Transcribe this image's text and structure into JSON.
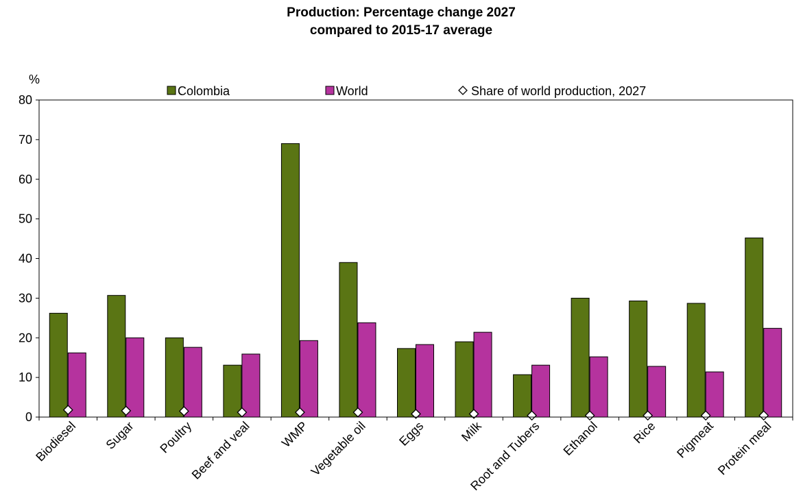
{
  "chart_data": {
    "type": "bar",
    "title_line1": "Production: Percentage change 2027",
    "title_line2": "compared to 2015-17 average",
    "ylabel": "%",
    "ylim": [
      0,
      80
    ],
    "yticks": [
      0,
      10,
      20,
      30,
      40,
      50,
      60,
      70,
      80
    ],
    "legend_placement": "top",
    "categories": [
      "Biodiesel",
      "Sugar",
      "Poultry",
      "Beef and veal",
      "WMP",
      "Vegetable oil",
      "Eggs",
      "Milk",
      "Root and Tubers",
      "Ethanol",
      "Rice",
      "Pigmeat",
      "Protein meal"
    ],
    "series": [
      {
        "name": "Colombia",
        "color": "#5a7514",
        "values": [
          26.2,
          30.7,
          20.0,
          13.1,
          69.0,
          39.0,
          17.3,
          19.0,
          10.7,
          30.0,
          29.3,
          28.7,
          45.2
        ]
      },
      {
        "name": "World",
        "color": "#b5339e",
        "values": [
          16.2,
          20.0,
          17.6,
          15.9,
          19.3,
          23.8,
          18.3,
          21.4,
          13.1,
          15.2,
          12.8,
          11.4,
          22.4
        ]
      }
    ],
    "markers": {
      "name": "Share of world production, 2027",
      "marker": "diamond",
      "values": [
        1.8,
        1.6,
        1.5,
        1.2,
        1.2,
        1.2,
        0.8,
        0.8,
        0.4,
        0.4,
        0.4,
        0.4,
        0.4
      ]
    }
  }
}
